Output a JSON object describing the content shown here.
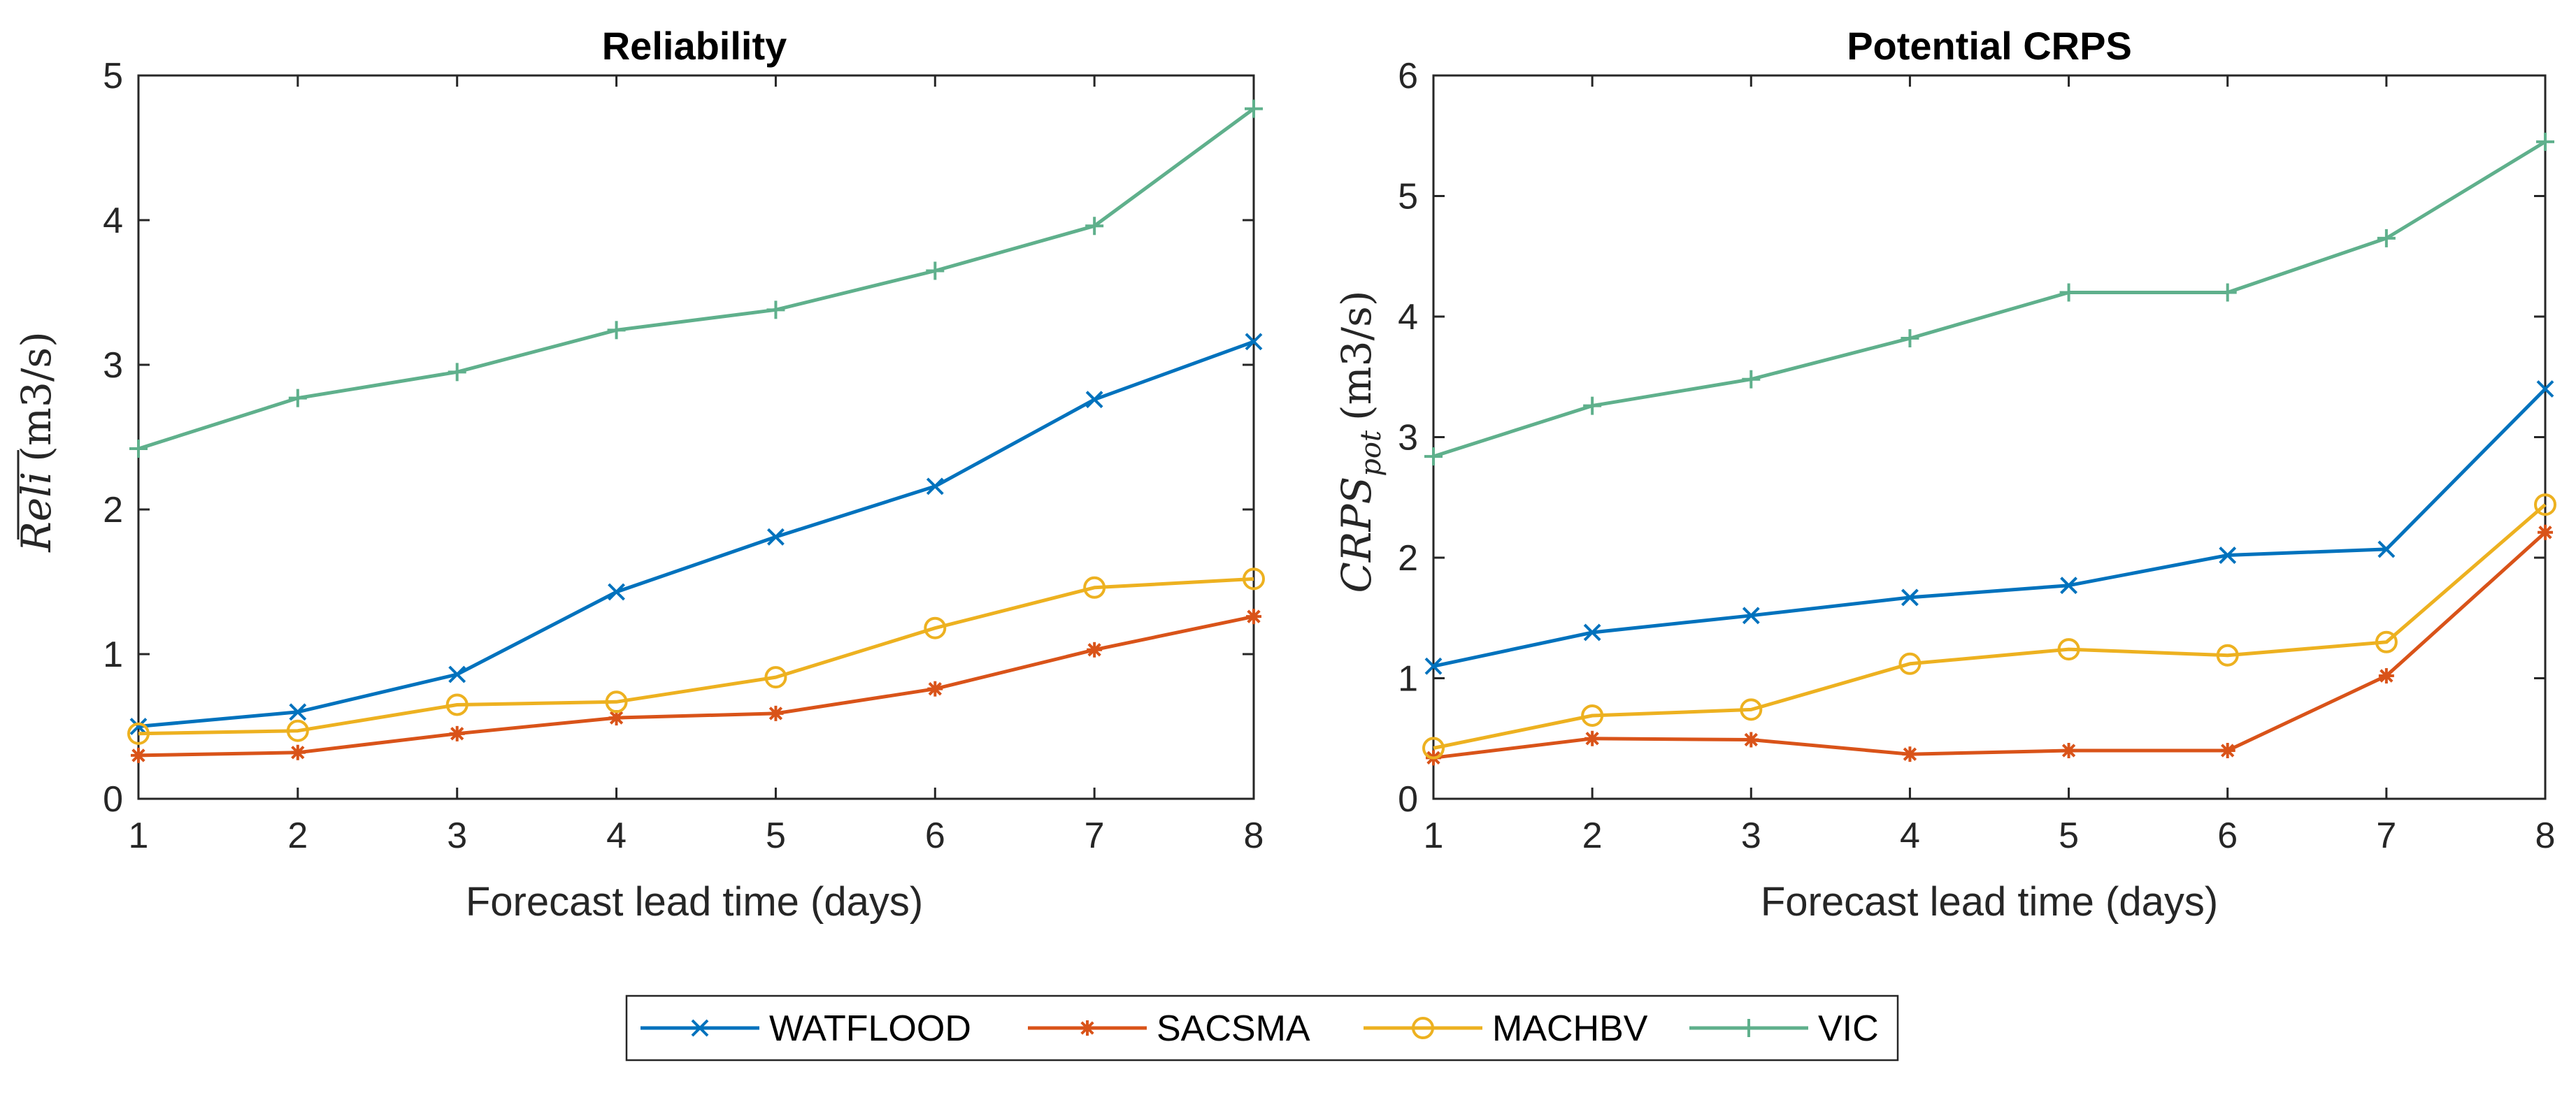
{
  "chart_data": [
    {
      "type": "line",
      "title": "Reliability",
      "xlabel": "Forecast lead time (days)",
      "ylabel": "Reli (m3/s)",
      "ylabel_main": "Reli",
      "ylabel_unit": "(m3/s)",
      "ylabel_overline": true,
      "x": [
        1,
        2,
        3,
        4,
        5,
        6,
        7,
        8
      ],
      "xlim": [
        1,
        8
      ],
      "ylim": [
        0,
        5
      ],
      "xticks": [
        "1",
        "2",
        "3",
        "4",
        "5",
        "6",
        "7",
        "8"
      ],
      "yticks": [
        "0",
        "1",
        "2",
        "3",
        "4",
        "5"
      ],
      "series": [
        {
          "name": "WATFLOOD",
          "color": "#0072BD",
          "marker": "x",
          "values": [
            0.5,
            0.6,
            0.86,
            1.43,
            1.81,
            2.16,
            2.76,
            3.16
          ]
        },
        {
          "name": "SACSMA",
          "color": "#D95319",
          "marker": "asterisk",
          "values": [
            0.3,
            0.32,
            0.45,
            0.56,
            0.59,
            0.76,
            1.03,
            1.26
          ]
        },
        {
          "name": "MACHBV",
          "color": "#EDB120",
          "marker": "circle",
          "values": [
            0.45,
            0.47,
            0.65,
            0.67,
            0.84,
            1.18,
            1.46,
            1.52
          ]
        },
        {
          "name": "VIC",
          "color": "#5FB08C",
          "marker": "plus",
          "values": [
            2.42,
            2.77,
            2.95,
            3.24,
            3.38,
            3.65,
            3.96,
            4.77
          ]
        }
      ]
    },
    {
      "type": "line",
      "title": "Potential CRPS",
      "xlabel": "Forecast lead time (days)",
      "ylabel": "CRPS_pot (m3/s)",
      "ylabel_main": "CRPS",
      "ylabel_sub": "pot",
      "ylabel_unit": "(m3/s)",
      "ylabel_overline": false,
      "x": [
        1,
        2,
        3,
        4,
        5,
        6,
        7,
        8
      ],
      "xlim": [
        1,
        8
      ],
      "ylim": [
        0,
        6
      ],
      "xticks": [
        "1",
        "2",
        "3",
        "4",
        "5",
        "6",
        "7",
        "8"
      ],
      "yticks": [
        "0",
        "1",
        "2",
        "3",
        "4",
        "5",
        "6"
      ],
      "series": [
        {
          "name": "WATFLOOD",
          "color": "#0072BD",
          "marker": "x",
          "values": [
            1.1,
            1.38,
            1.52,
            1.67,
            1.77,
            2.02,
            2.07,
            3.4
          ]
        },
        {
          "name": "SACSMA",
          "color": "#D95319",
          "marker": "asterisk",
          "values": [
            0.34,
            0.5,
            0.49,
            0.37,
            0.4,
            0.4,
            1.02,
            2.21
          ]
        },
        {
          "name": "MACHBV",
          "color": "#EDB120",
          "marker": "circle",
          "values": [
            0.42,
            0.69,
            0.74,
            1.12,
            1.24,
            1.19,
            1.3,
            2.44
          ]
        },
        {
          "name": "VIC",
          "color": "#5FB08C",
          "marker": "plus",
          "values": [
            2.84,
            3.26,
            3.48,
            3.82,
            4.2,
            4.2,
            4.65,
            5.45
          ]
        }
      ]
    }
  ],
  "legend": {
    "placement": "bottom-center",
    "items": [
      "WATFLOOD",
      "SACSMA",
      "MACHBV",
      "VIC"
    ]
  }
}
